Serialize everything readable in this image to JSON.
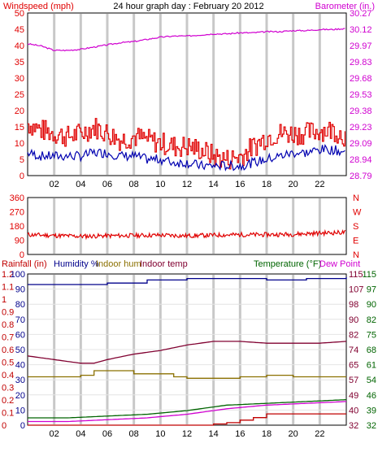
{
  "title": "24 hour graph day : February 20 2012",
  "colors": {
    "wind": "#e00000",
    "gust_fill": "#e00000",
    "avg": "#0000b0",
    "baro": "#d000d0",
    "dir": "#e00000",
    "humidity": "#00008b",
    "indoor_hum": "#8b7000",
    "indoor_temp": "#800030",
    "temp": "#006400",
    "dew": "#d000d0",
    "rain": "#c00000",
    "text_dark": "#000000",
    "grid": "#c8c8c8"
  },
  "chart_data": [
    {
      "type": "line",
      "panel": "wind",
      "title": "24 hour graph day : February 20 2012",
      "ylabel": "Windspeed (mph)",
      "y2label": "Barometer (in.)",
      "ylim": [
        0,
        50
      ],
      "yticks": [
        "0",
        "5",
        "10",
        "15",
        "20",
        "25",
        "30",
        "35",
        "40",
        "45",
        "50"
      ],
      "y2lim": [
        28.79,
        30.27
      ],
      "y2ticks": [
        "28.79",
        "28.94",
        "29.09",
        "29.23",
        "29.38",
        "29.53",
        "29.68",
        "29.83",
        "29.97",
        "30.12",
        "30.27"
      ],
      "xticks": [
        "02",
        "04",
        "06",
        "08",
        "10",
        "12",
        "14",
        "16",
        "18",
        "20",
        "22"
      ],
      "xlim": [
        0,
        24
      ],
      "series": [
        {
          "name": "Windspeed (mph)",
          "kind": "gust",
          "x": [
            0,
            1,
            2,
            3,
            4,
            5,
            6,
            7,
            8,
            9,
            10,
            11,
            12,
            13,
            14,
            15,
            16,
            17,
            18,
            19,
            20,
            21,
            22,
            23,
            24
          ],
          "values": [
            16,
            14,
            13,
            12,
            13,
            15,
            13,
            11,
            12,
            11,
            10,
            9,
            9,
            8,
            6,
            5,
            6,
            9,
            12,
            13,
            13,
            13,
            14,
            14,
            12
          ]
        },
        {
          "kind": "average",
          "x": [
            0,
            1,
            2,
            3,
            4,
            5,
            6,
            7,
            8,
            9,
            10,
            11,
            12,
            13,
            14,
            15,
            16,
            17,
            18,
            19,
            20,
            21,
            22,
            23,
            24
          ],
          "values": [
            7,
            6,
            6,
            6,
            6,
            7,
            7,
            6,
            6,
            5,
            5,
            4,
            4,
            3,
            3,
            3,
            3,
            4,
            5,
            6,
            7,
            7,
            8,
            8,
            7
          ]
        },
        {
          "name": "Barometer (in.)",
          "axis": "right",
          "x": [
            0,
            1,
            2,
            3,
            4,
            5,
            6,
            7,
            8,
            9,
            10,
            11,
            12,
            13,
            14,
            15,
            16,
            17,
            18,
            19,
            20,
            21,
            22,
            23,
            24
          ],
          "values": [
            29.99,
            29.97,
            29.93,
            29.93,
            29.94,
            29.96,
            29.98,
            30.0,
            30.01,
            30.03,
            30.05,
            30.06,
            30.06,
            30.07,
            30.08,
            30.08,
            30.09,
            30.09,
            30.1,
            30.1,
            30.11,
            30.11,
            30.12,
            30.12,
            30.13
          ]
        }
      ]
    },
    {
      "type": "line",
      "panel": "direction",
      "ylim": [
        0,
        360
      ],
      "yticks": [
        "0",
        "90",
        "180",
        "270",
        "360"
      ],
      "y2ticks": [
        "N",
        "E",
        "S",
        "W",
        "N"
      ],
      "xlim": [
        0,
        24
      ],
      "series": [
        {
          "name": "Wind direction",
          "x": [
            0,
            2,
            4,
            6,
            8,
            10,
            12,
            14,
            16,
            18,
            20,
            22,
            24
          ],
          "values": [
            125,
            120,
            115,
            118,
            120,
            122,
            118,
            122,
            125,
            125,
            128,
            135,
            140
          ]
        }
      ]
    },
    {
      "type": "line",
      "panel": "temperature",
      "ylabels": [
        "Rainfall (in)",
        "Humidity %",
        "Indoor hum",
        "Indoor temp"
      ],
      "y2labels": [
        "Temperature (°F)",
        "Dew Point"
      ],
      "yticks_rain": [
        "0",
        "0.1",
        "0.2",
        "0.3",
        "0.4",
        "0.5",
        "0.6",
        "0.7",
        "0.8",
        "0.9",
        "1",
        "1.1",
        "1.2"
      ],
      "yticks_hum": [
        "0",
        "10",
        "20",
        "30",
        "40",
        "50",
        "60",
        "70",
        "80",
        "90",
        "100"
      ],
      "yticks_in": [
        "32",
        "40",
        "49",
        "57",
        "65",
        "74",
        "82",
        "90",
        "98",
        "107",
        "115"
      ],
      "yticks_out": [
        "32",
        "39",
        "46",
        "54",
        "61",
        "68",
        "75",
        "82",
        "90",
        "97",
        "115"
      ],
      "xticks": [
        "02",
        "04",
        "06",
        "08",
        "10",
        "12",
        "14",
        "16",
        "18",
        "20",
        "22"
      ],
      "xlim": [
        0,
        24
      ],
      "series": [
        {
          "name": "Humidity %",
          "scale": "hum",
          "x": [
            0,
            3,
            6,
            9,
            12,
            15,
            18,
            21,
            24
          ],
          "values": [
            93,
            93,
            94,
            96,
            97,
            97,
            96,
            97,
            98
          ]
        },
        {
          "name": "Indoor hum",
          "scale": "hum",
          "x": [
            0,
            4,
            5,
            8,
            11,
            12,
            16,
            18,
            20,
            24
          ],
          "values": [
            32,
            33,
            36,
            34,
            32,
            31,
            32,
            33,
            32,
            32
          ]
        },
        {
          "name": "Indoor temp",
          "scale": "temp",
          "x": [
            0,
            2,
            4,
            5,
            6,
            8,
            10,
            12,
            14,
            16,
            18,
            20,
            22,
            24
          ],
          "values": [
            70,
            68,
            66,
            66,
            68,
            71,
            73,
            76,
            78,
            78,
            77,
            77,
            77,
            78
          ]
        },
        {
          "name": "Temperature (°F)",
          "scale": "temp",
          "x": [
            0,
            3,
            6,
            9,
            12,
            15,
            18,
            21,
            24
          ],
          "values": [
            36,
            36,
            37,
            38,
            40,
            43,
            44,
            45,
            46
          ]
        },
        {
          "name": "Dew Point",
          "scale": "temp",
          "x": [
            0,
            3,
            6,
            9,
            12,
            15,
            18,
            21,
            24
          ],
          "values": [
            34,
            34,
            35,
            36,
            38,
            41,
            43,
            44,
            45
          ]
        },
        {
          "name": "Rainfall (in)",
          "scale": "rain",
          "x": [
            0,
            12,
            14,
            15,
            16,
            17,
            18,
            24
          ],
          "values": [
            0,
            0,
            0.01,
            0.02,
            0.04,
            0.06,
            0.09,
            0.09
          ]
        }
      ]
    }
  ]
}
